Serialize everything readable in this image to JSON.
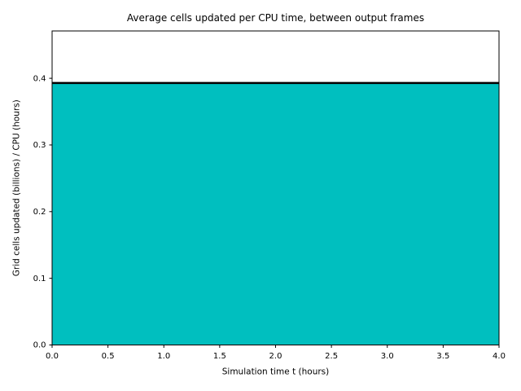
{
  "chart_data": {
    "type": "area",
    "title": "Average cells updated per CPU time, between output frames",
    "xlabel": "Simulation time t (hours)",
    "ylabel": "Grid cells updated (billions) / CPU (hours)",
    "x": [
      0.0,
      4.0
    ],
    "y": [
      0.393,
      0.393
    ],
    "xlim": [
      0.0,
      4.0
    ],
    "ylim": [
      0.0,
      0.471
    ],
    "xticks": [
      0.0,
      0.5,
      1.0,
      1.5,
      2.0,
      2.5,
      3.0,
      3.5,
      4.0
    ],
    "yticks": [
      0.0,
      0.1,
      0.2,
      0.3,
      0.4
    ],
    "tick_format_decimals": 1,
    "fill_color": "#00bfbf",
    "line_color": "#000000",
    "line_width": 2.5,
    "frame_color": "#000000",
    "grid": false,
    "legend_position": "none"
  }
}
